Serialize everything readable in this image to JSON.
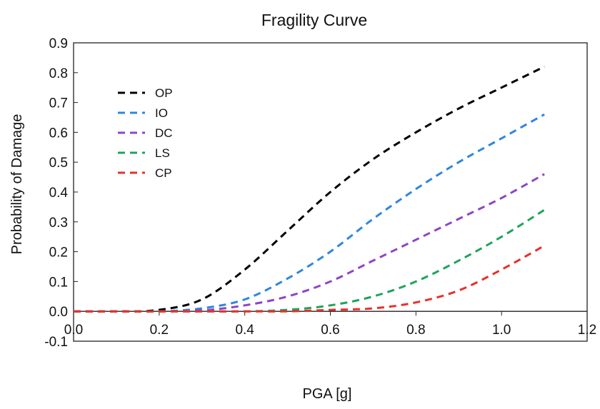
{
  "chart_data": {
    "type": "line",
    "title": "Fragility Curve",
    "xlabel": "PGA [g]",
    "ylabel": "Probability of Damage",
    "xlim": [
      0.0,
      1.2
    ],
    "ylim": [
      -0.1,
      0.9
    ],
    "xticks": [
      "0.0",
      "0.2",
      "0.4",
      "0.6",
      "0.8",
      "1.0",
      "1.2"
    ],
    "yticks": [
      "-0.1",
      "0.0",
      "0.1",
      "0.2",
      "0.3",
      "0.4",
      "0.5",
      "0.6",
      "0.7",
      "0.8",
      "0.9"
    ],
    "grid": false,
    "legend_position": "upper-left",
    "line_style": "dashed",
    "x": [
      0.0,
      0.1,
      0.2,
      0.3,
      0.4,
      0.5,
      0.6,
      0.7,
      0.8,
      0.9,
      1.0,
      1.1
    ],
    "series": [
      {
        "name": "OP",
        "color": "#000000",
        "values": [
          0.0,
          0.0,
          0.005,
          0.04,
          0.14,
          0.27,
          0.4,
          0.51,
          0.6,
          0.68,
          0.75,
          0.82
        ]
      },
      {
        "name": "IO",
        "color": "#2e86de",
        "values": [
          0.0,
          0.0,
          0.0,
          0.01,
          0.04,
          0.11,
          0.2,
          0.31,
          0.41,
          0.5,
          0.58,
          0.66
        ]
      },
      {
        "name": "DC",
        "color": "#8e44c9",
        "values": [
          0.0,
          0.0,
          0.0,
          0.003,
          0.02,
          0.05,
          0.1,
          0.17,
          0.24,
          0.31,
          0.38,
          0.46
        ]
      },
      {
        "name": "LS",
        "color": "#1fa35a",
        "values": [
          0.0,
          0.0,
          0.0,
          0.0,
          0.0,
          0.005,
          0.02,
          0.05,
          0.1,
          0.17,
          0.25,
          0.34
        ]
      },
      {
        "name": "CP",
        "color": "#e8302a",
        "values": [
          0.0,
          0.0,
          0.0,
          0.0,
          0.0,
          0.0,
          0.005,
          0.01,
          0.03,
          0.07,
          0.14,
          0.22
        ]
      }
    ]
  }
}
